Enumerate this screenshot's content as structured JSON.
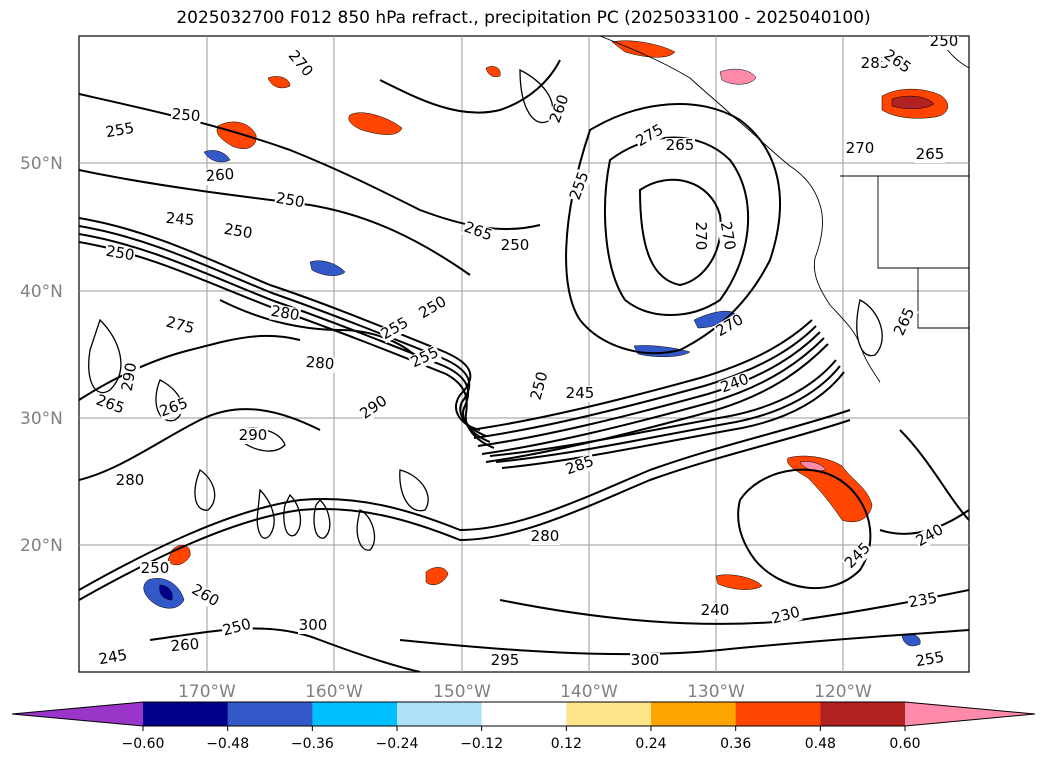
{
  "title": "2025032700 F012 850 hPa refract., precipitation PC (2025033100 - 2025040100)",
  "latitude_labels": [
    "50°N",
    "40°N",
    "30°N",
    "20°N"
  ],
  "longitude_labels": [
    "170°W",
    "160°W",
    "150°W",
    "140°W",
    "130°W",
    "120°W"
  ],
  "contour_labels": [
    "255",
    "250",
    "250",
    "260",
    "250",
    "245",
    "250",
    "270",
    "275",
    "280",
    "280",
    "255",
    "255",
    "250",
    "250",
    "265",
    "260",
    "255",
    "275",
    "265",
    "270",
    "270",
    "270",
    "240",
    "245",
    "250",
    "290",
    "290",
    "265",
    "265",
    "290",
    "260",
    "265",
    "280",
    "285",
    "280",
    "245",
    "240",
    "235",
    "230",
    "240",
    "255",
    "300",
    "250",
    "260",
    "245",
    "295",
    "300",
    "285",
    "250",
    "265",
    "265",
    "270",
    "250"
  ],
  "colorbar": {
    "ticks": [
      "−0.60",
      "−0.48",
      "−0.36",
      "−0.24",
      "−0.12",
      "0.12",
      "0.24",
      "0.36",
      "0.48",
      "0.60"
    ],
    "colors": [
      "#9a35c9",
      "#00008b",
      "#3358c8",
      "#00bfff",
      "#aee0f8",
      "#ffffff",
      "#ffe58a",
      "#ffa500",
      "#ff4500",
      "#b22222",
      "#ff8aaa"
    ]
  }
}
